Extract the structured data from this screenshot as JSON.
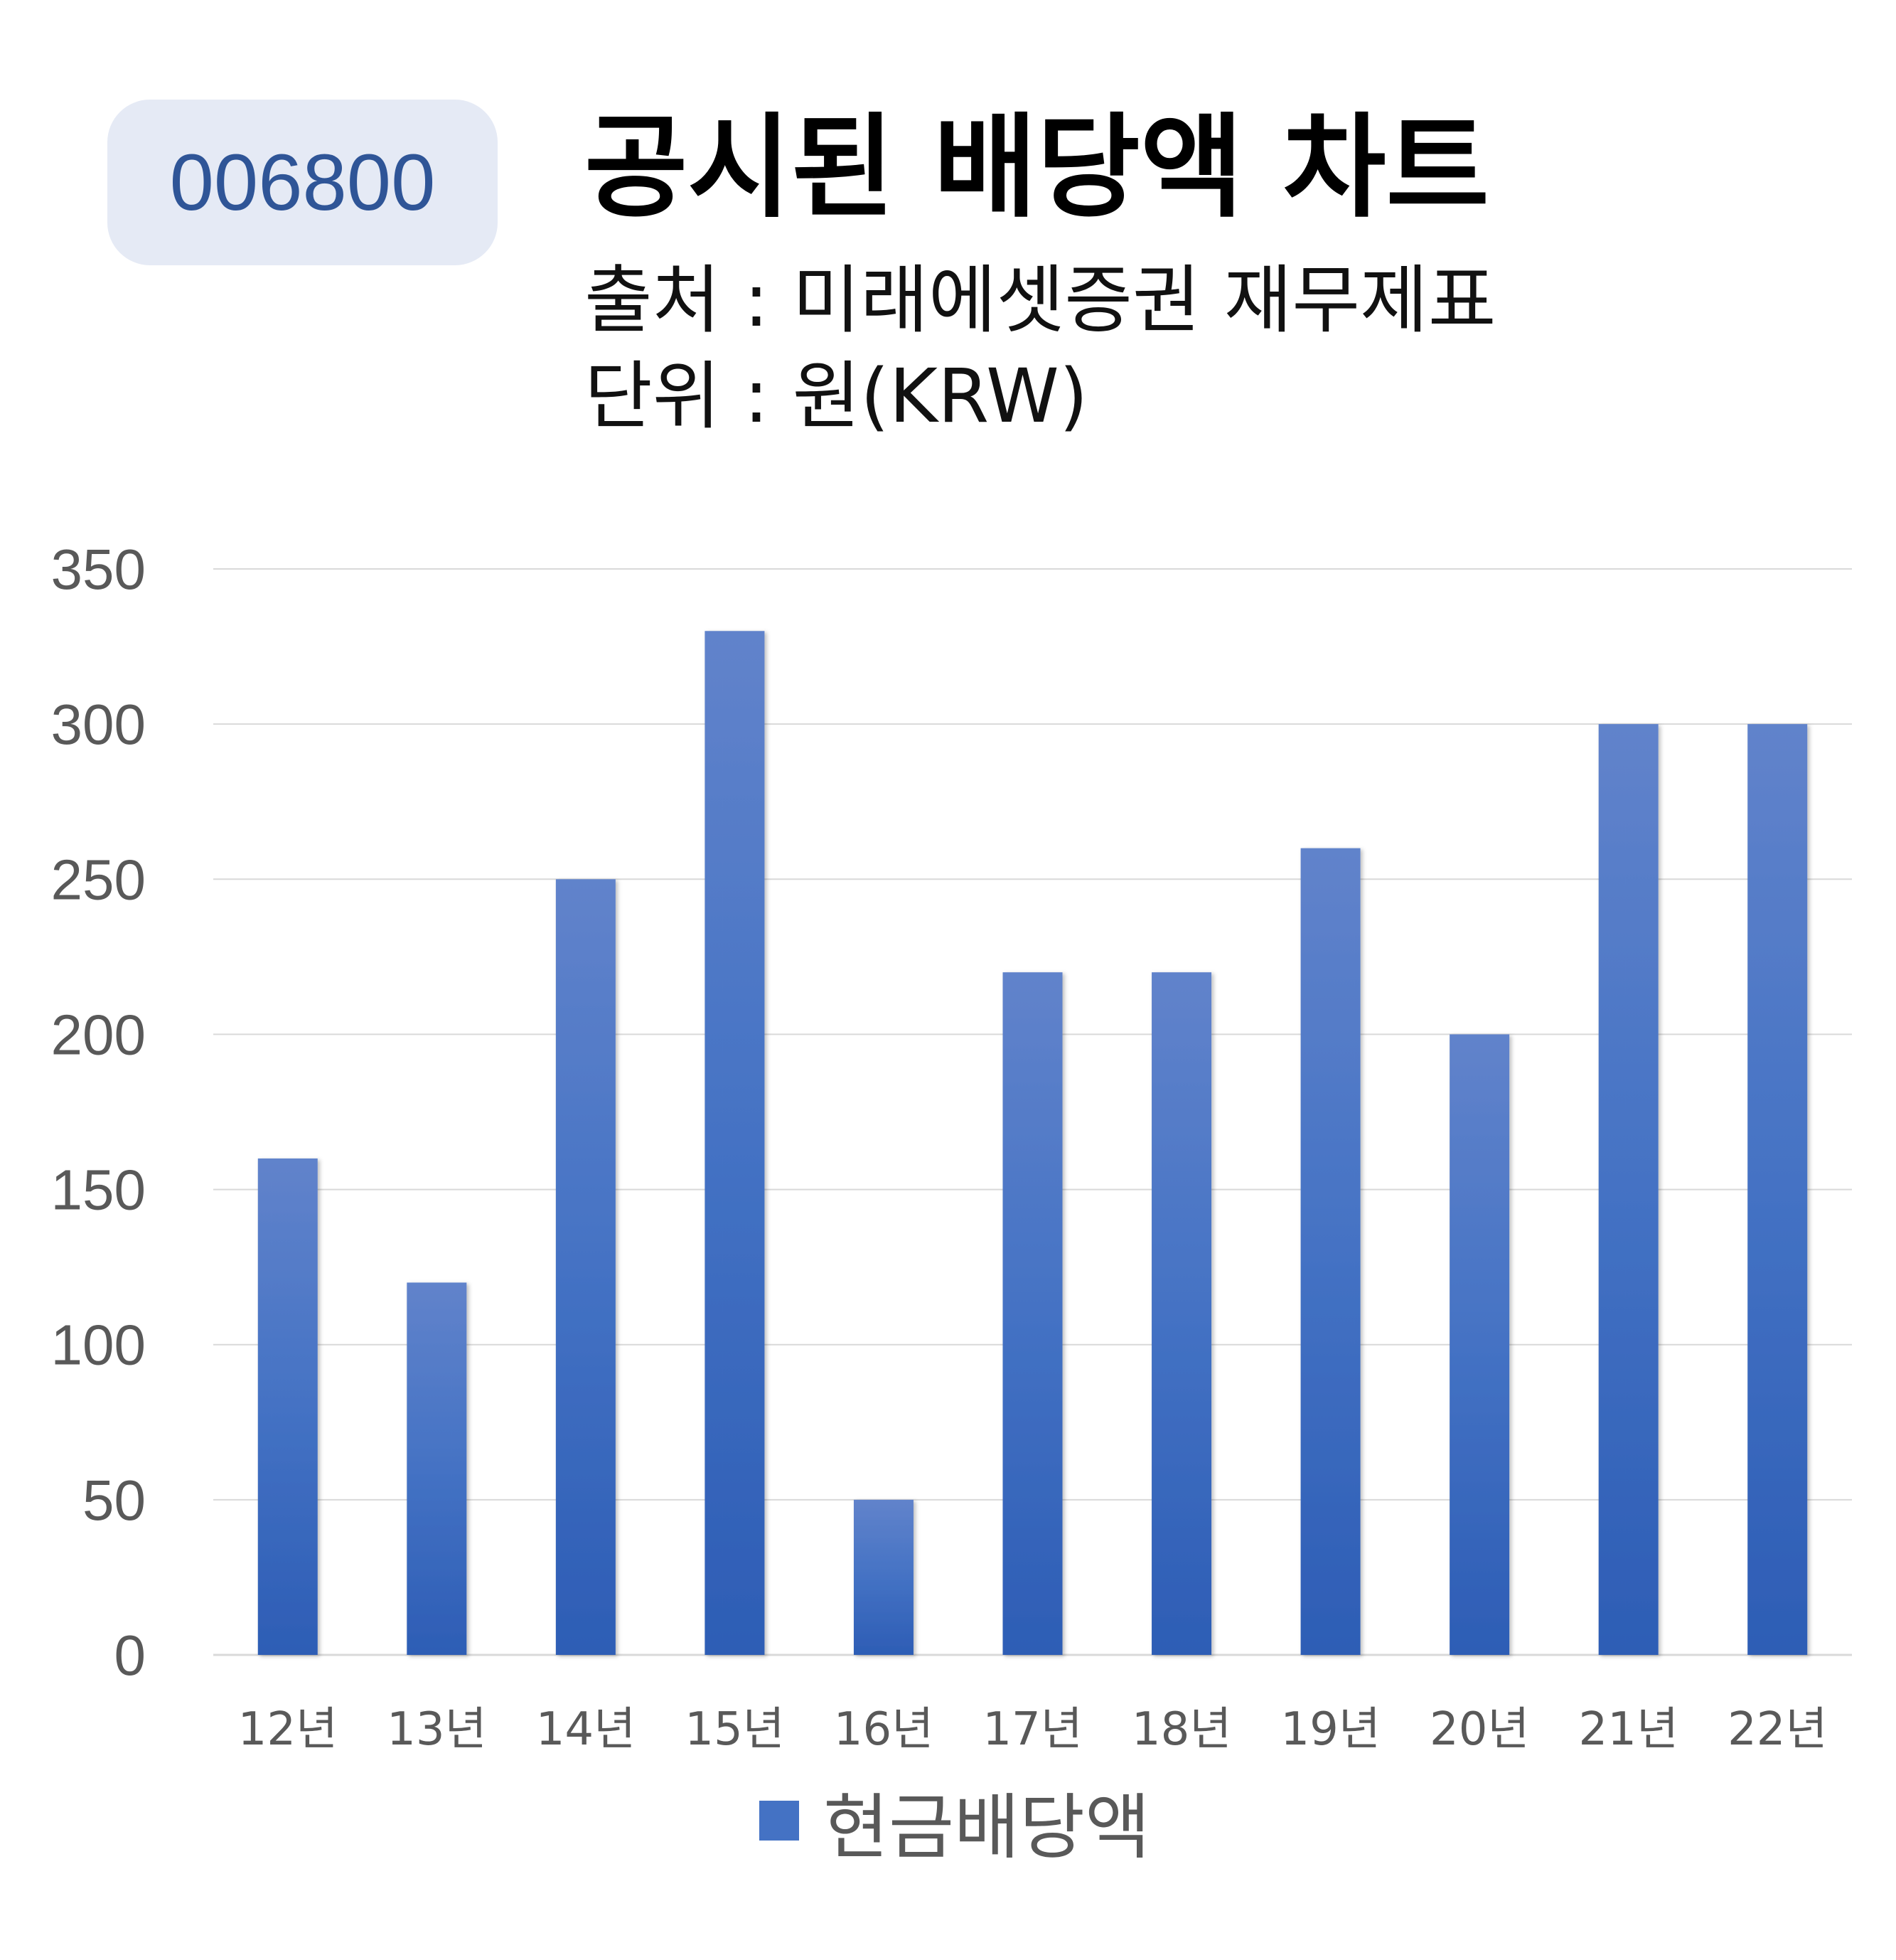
{
  "badge": {
    "code": "006800"
  },
  "header": {
    "title": "공시된 배당액 차트",
    "source": "출처 : 미래에셋증권 재무제표",
    "unit": "단위 : 원(KRW)"
  },
  "colors": {
    "bar_top": "#6183cb",
    "bar_bottom": "#2d5db5",
    "badge_bg": "#e5eaf5",
    "badge_text": "#2f5597",
    "gridline": "#d9d9d9",
    "tick_text": "#595959"
  },
  "chart_data": {
    "type": "bar",
    "categories": [
      "12년",
      "13년",
      "14년",
      "15년",
      "16년",
      "17년",
      "18년",
      "19년",
      "20년",
      "21년",
      "22년"
    ],
    "series": [
      {
        "name": "현금배당액",
        "values": [
          160,
          120,
          250,
          330,
          50,
          220,
          220,
          260,
          200,
          300,
          300
        ]
      }
    ],
    "ylim": [
      0,
      350
    ],
    "yticks": [
      "0",
      "50",
      "100",
      "150",
      "200",
      "250",
      "300",
      "350"
    ],
    "grid": true,
    "legend": "bottom"
  }
}
